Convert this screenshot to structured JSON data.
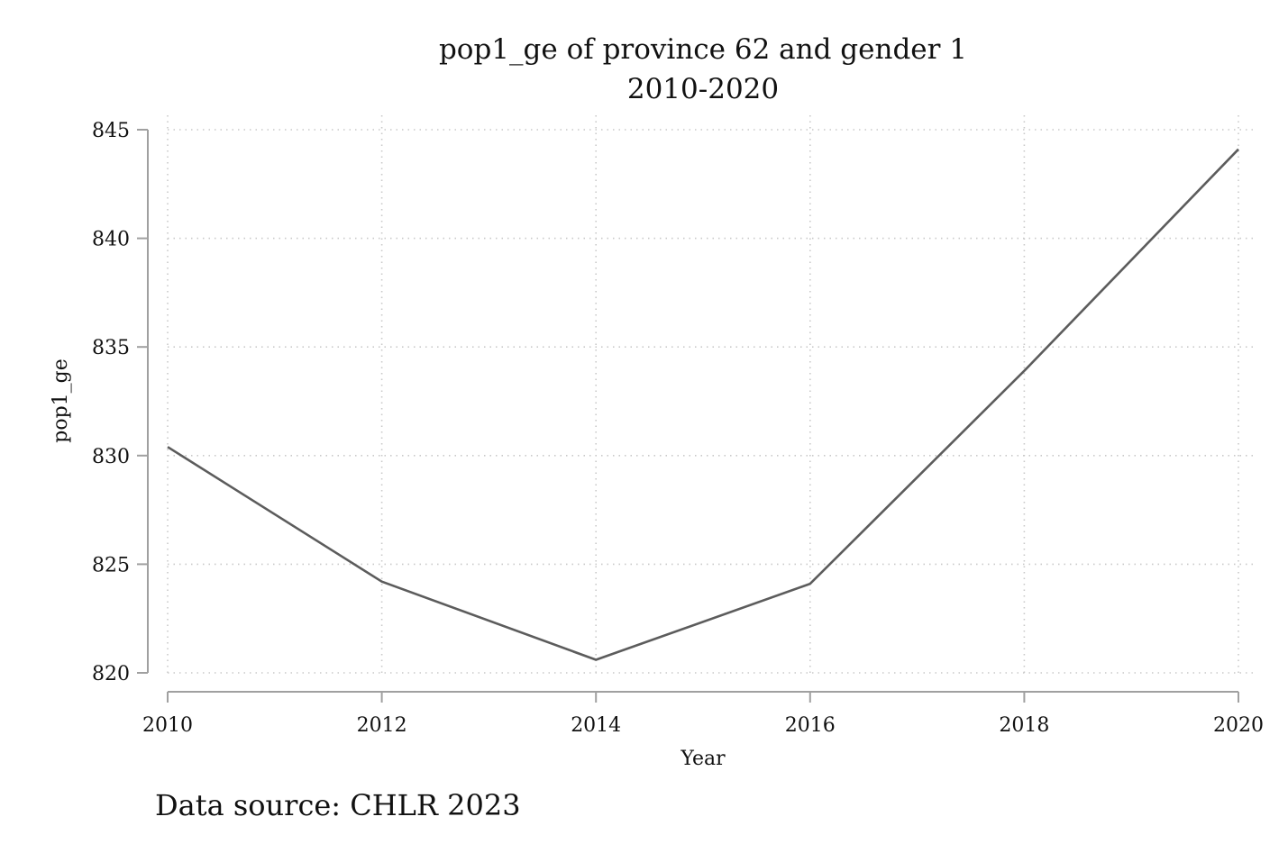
{
  "chart_data": {
    "type": "line",
    "title": "pop1_ge of province 62 and gender 1",
    "subtitle": "2010-2020",
    "xlabel": "Year",
    "ylabel": "pop1_ge",
    "note": "Data source: CHLR 2023",
    "x": [
      2010,
      2012,
      2014,
      2016,
      2018,
      2020
    ],
    "series": [
      {
        "values": [
          830.4,
          824.2,
          820.6,
          824.1,
          833.9,
          844.1
        ]
      }
    ],
    "xticks": [
      "2010",
      "2012",
      "2014",
      "2016",
      "2018",
      "2020"
    ],
    "yticks": [
      "820",
      "825",
      "830",
      "835",
      "840",
      "845"
    ],
    "xlim": [
      2010,
      2020
    ],
    "ylim": [
      820,
      845
    ],
    "grid": true,
    "legend": "none",
    "line_color": "#5c5c5c"
  }
}
